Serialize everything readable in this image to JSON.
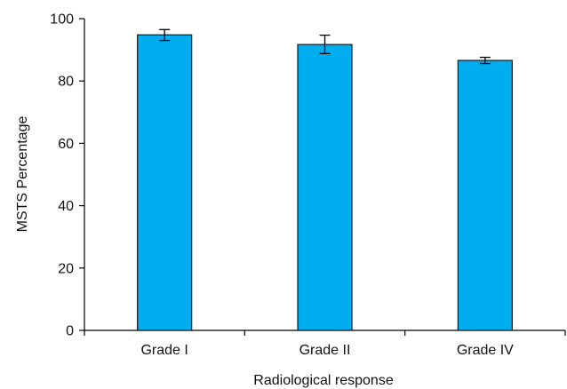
{
  "chart_data": {
    "type": "bar",
    "categories": [
      "Grade I",
      "Grade II",
      "Grade IV"
    ],
    "values": [
      94.8,
      91.7,
      86.6
    ],
    "error_low": [
      93.0,
      88.8,
      85.6
    ],
    "error_high": [
      96.5,
      94.7,
      87.6
    ],
    "xlabel": "Radiological response",
    "ylabel": "MSTS  Percentage",
    "ylim": [
      0,
      100
    ],
    "yticks": [
      0,
      20,
      40,
      60,
      80,
      100
    ],
    "grid": false,
    "bar_color": "#00aeef"
  }
}
